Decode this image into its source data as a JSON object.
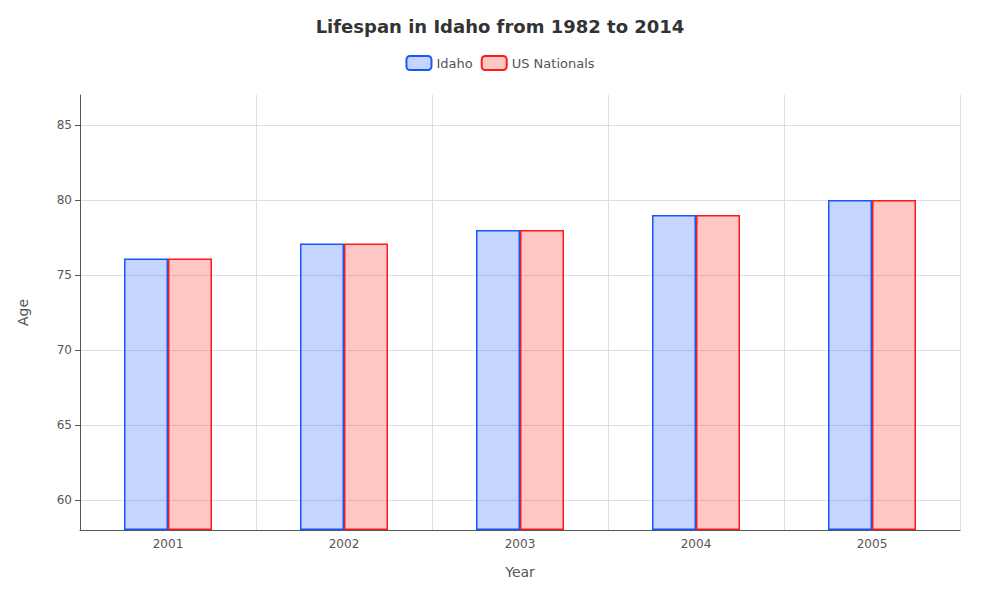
{
  "chart_data": {
    "type": "bar",
    "title": "Lifespan in Idaho from 1982 to 2014",
    "x_label": "Year",
    "y_label": "Age",
    "categories": [
      "2001",
      "2002",
      "2003",
      "2004",
      "2005"
    ],
    "series": [
      {
        "name": "Idaho",
        "color": "#1a56ff",
        "values": [
          76.1,
          77.1,
          78.0,
          79.0,
          80.0
        ]
      },
      {
        "name": "US Nationals",
        "color": "#ff1a1a",
        "values": [
          76.1,
          77.1,
          78.0,
          79.0,
          80.0
        ]
      }
    ],
    "ylim": [
      58,
      87
    ],
    "yticks": [
      60,
      65,
      70,
      75,
      80,
      85
    ],
    "grid": true,
    "legend": "upper center"
  }
}
